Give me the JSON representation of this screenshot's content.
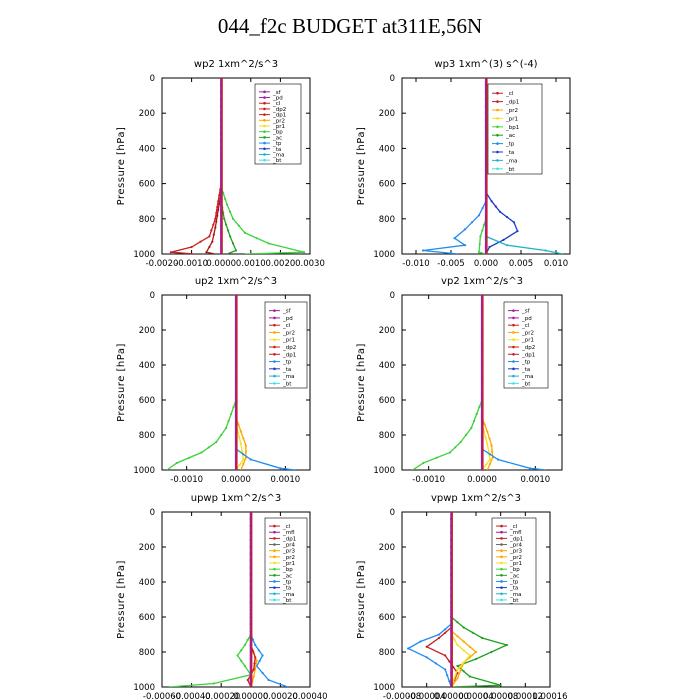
{
  "title": "044_f2c  BUDGET at311E,56N",
  "colors": {
    "sf": "#a01ea0",
    "pd": "#a01ea0",
    "cl": "#c81e1e",
    "dp": "#c81e1e",
    "dp2": "#c81e1e",
    "pr2": "#ffa500",
    "pr1": "#f0e020",
    "bp": "#3cd23c",
    "ac": "#20a020",
    "tp": "#1e8cf0",
    "ta": "#1e3cc8",
    "ma": "#20b4c8",
    "bt": "#40e0f0",
    "mfl": "#a01ea0",
    "dp4": "#c81e1e",
    "pr3": "#ffa500"
  },
  "chart_data": [
    {
      "type": "line",
      "title": "wp2  1xm^2/s^3",
      "ylabel": "Pressure  [hPa]",
      "xlim": [
        -0.002,
        0.003
      ],
      "ylim": [
        1000,
        0
      ],
      "xticks": [
        "-0.0020",
        "-0.0010",
        "0.0000",
        "0.0010",
        "0.0020",
        "0.0030"
      ],
      "yticks": [
        "0",
        "200",
        "400",
        "600",
        "800",
        "1000"
      ],
      "legend": [
        "_sf",
        "_pd",
        "_cl",
        "_dp2",
        "_dp1",
        "_pr2",
        "_pr1",
        "_bp",
        "_ac",
        "_tp",
        "_ta",
        "_ma",
        "_bt"
      ],
      "series": [
        {
          "name": "_cl",
          "color": "#c81e1e",
          "points": [
            [
              0,
              0
            ],
            [
              0,
              600
            ],
            [
              -0.0001,
              700
            ],
            [
              -0.0002,
              800
            ],
            [
              -0.0004,
              900
            ],
            [
              -0.001,
              960
            ],
            [
              -0.0017,
              990
            ],
            [
              -0.0009,
              1000
            ]
          ]
        },
        {
          "name": "_dp2",
          "color": "#b01414",
          "points": [
            [
              0,
              0
            ],
            [
              0,
              650
            ],
            [
              -0.0001,
              750
            ],
            [
              -0.0002,
              850
            ],
            [
              -0.0003,
              930
            ],
            [
              -0.0005,
              990
            ],
            [
              -0.0002,
              1000
            ]
          ]
        },
        {
          "name": "_bp",
          "color": "#3cd23c",
          "points": [
            [
              0,
              0
            ],
            [
              0,
              620
            ],
            [
              0.0002,
              720
            ],
            [
              0.0004,
              800
            ],
            [
              0.0008,
              880
            ],
            [
              0.0016,
              940
            ],
            [
              0.0028,
              990
            ],
            [
              0.0008,
              1000
            ]
          ]
        },
        {
          "name": "_ac",
          "color": "#20a020",
          "points": [
            [
              0,
              0
            ],
            [
              0,
              700
            ],
            [
              0.0001,
              800
            ],
            [
              0.0003,
              900
            ],
            [
              0.0005,
              980
            ],
            [
              0.0002,
              1000
            ]
          ]
        },
        {
          "name": "_pd",
          "color": "#a01ea0",
          "points": [
            [
              0,
              0
            ],
            [
              0,
              1000
            ]
          ]
        }
      ]
    },
    {
      "type": "line",
      "title": "wp3  1xm^(3) s^(-4)",
      "ylabel": "Pressure  [hPa]",
      "xlim": [
        -0.012,
        0.012
      ],
      "ylim": [
        1000,
        0
      ],
      "xticks": [
        "-0.010",
        "-0.005",
        "0.000",
        "0.005",
        "0.010"
      ],
      "yticks": [
        "0",
        "200",
        "400",
        "600",
        "800",
        "1000"
      ],
      "legend": [
        "_cl",
        "_dp1",
        "_pr2",
        "_pr1",
        "_bp1",
        "_ac",
        "_tp",
        "_ta",
        "_ma",
        "_bt"
      ],
      "series": [
        {
          "name": "_ta",
          "color": "#1e3cc8",
          "points": [
            [
              0,
              0
            ],
            [
              0,
              650
            ],
            [
              0.0008,
              700
            ],
            [
              0.002,
              760
            ],
            [
              0.004,
              820
            ],
            [
              0.0045,
              870
            ],
            [
              0.0025,
              920
            ],
            [
              0.0005,
              960
            ],
            [
              0,
              1000
            ]
          ]
        },
        {
          "name": "_tp",
          "color": "#1e8cf0",
          "points": [
            [
              0,
              0
            ],
            [
              0,
              700
            ],
            [
              -0.001,
              780
            ],
            [
              -0.003,
              860
            ],
            [
              -0.0045,
              910
            ],
            [
              -0.003,
              950
            ],
            [
              -0.009,
              980
            ],
            [
              -0.004,
              1000
            ]
          ]
        },
        {
          "name": "_ma",
          "color": "#20b4c8",
          "points": [
            [
              0,
              0
            ],
            [
              0,
              900
            ],
            [
              0.003,
              950
            ],
            [
              0.0085,
              980
            ],
            [
              0.011,
              1000
            ]
          ]
        },
        {
          "name": "_ac",
          "color": "#3cd23c",
          "points": [
            [
              0,
              0
            ],
            [
              0,
              800
            ],
            [
              -0.0008,
              900
            ],
            [
              -0.001,
              990
            ],
            [
              0,
              1000
            ]
          ]
        },
        {
          "name": "_cl",
          "color": "#c81e1e",
          "points": [
            [
              0,
              0
            ],
            [
              0,
              1000
            ]
          ]
        }
      ]
    },
    {
      "type": "line",
      "title": "up2  1xm^2/s^3",
      "ylabel": "Pressure  [hPa]",
      "xlim": [
        -0.0015,
        0.0015
      ],
      "ylim": [
        1000,
        0
      ],
      "xticks": [
        "-0.0010",
        "0.0000",
        "0.0010"
      ],
      "yticks": [
        "0",
        "200",
        "400",
        "600",
        "800",
        "1000"
      ],
      "legend": [
        "_sf",
        "_pd",
        "_cl",
        "_pr2",
        "_pr1",
        "_dp2",
        "_dp1",
        "_tp",
        "_ta",
        "_ma",
        "_bt"
      ],
      "series": [
        {
          "name": "_dp1",
          "color": "#3cd23c",
          "points": [
            [
              0,
              0
            ],
            [
              0,
              600
            ],
            [
              -0.0001,
              680
            ],
            [
              -0.0002,
              760
            ],
            [
              -0.0004,
              840
            ],
            [
              -0.0007,
              900
            ],
            [
              -0.0012,
              960
            ],
            [
              -0.0014,
              1000
            ]
          ]
        },
        {
          "name": "_pr2",
          "color": "#ffa500",
          "points": [
            [
              0,
              0
            ],
            [
              0,
              700
            ],
            [
              0.0001,
              780
            ],
            [
              0.0002,
              860
            ],
            [
              0.0002,
              930
            ],
            [
              0.0001,
              1000
            ]
          ]
        },
        {
          "name": "_pr1",
          "color": "#f0e020",
          "points": [
            [
              0,
              0
            ],
            [
              0,
              740
            ],
            [
              0.0001,
              850
            ],
            [
              0.00015,
              940
            ],
            [
              0,
              1000
            ]
          ]
        },
        {
          "name": "_tp",
          "color": "#1e8cf0",
          "points": [
            [
              0,
              0
            ],
            [
              0,
              880
            ],
            [
              0.0003,
              940
            ],
            [
              0.0009,
              990
            ],
            [
              0.0012,
              1000
            ]
          ]
        },
        {
          "name": "_cl",
          "color": "#c81e1e",
          "points": [
            [
              0,
              0
            ],
            [
              0,
              1000
            ]
          ]
        }
      ]
    },
    {
      "type": "line",
      "title": "vp2  1xm^2/s^3",
      "ylabel": "Pressure  [hPa]",
      "xlim": [
        -0.0015,
        0.0015
      ],
      "ylim": [
        1000,
        0
      ],
      "xticks": [
        "-0.0010",
        "0.0000",
        "0.0010"
      ],
      "yticks": [
        "0",
        "200",
        "400",
        "600",
        "800",
        "1000"
      ],
      "legend": [
        "_sf",
        "_pd",
        "_cl",
        "_pr2",
        "_pr1",
        "_dp2",
        "_dp1",
        "_tp",
        "_ta",
        "_ma",
        "_bt"
      ],
      "series": [
        {
          "name": "_dp1",
          "color": "#3cd23c",
          "points": [
            [
              0,
              0
            ],
            [
              0,
              600
            ],
            [
              -0.0001,
              680
            ],
            [
              -0.0002,
              760
            ],
            [
              -0.0004,
              840
            ],
            [
              -0.0006,
              900
            ],
            [
              -0.0011,
              960
            ],
            [
              -0.0013,
              1000
            ]
          ]
        },
        {
          "name": "_pr2",
          "color": "#ffa500",
          "points": [
            [
              0,
              0
            ],
            [
              0,
              700
            ],
            [
              0.0001,
              780
            ],
            [
              0.00018,
              860
            ],
            [
              0.0002,
              930
            ],
            [
              0.0001,
              1000
            ]
          ]
        },
        {
          "name": "_pr1",
          "color": "#f0e020",
          "points": [
            [
              0,
              0
            ],
            [
              0,
              740
            ],
            [
              0.0001,
              850
            ],
            [
              0.00015,
              940
            ],
            [
              0,
              1000
            ]
          ]
        },
        {
          "name": "_tp",
          "color": "#1e8cf0",
          "points": [
            [
              0,
              0
            ],
            [
              0,
              880
            ],
            [
              0.0003,
              940
            ],
            [
              0.0009,
              990
            ],
            [
              0.0012,
              1000
            ]
          ]
        },
        {
          "name": "_cl",
          "color": "#c81e1e",
          "points": [
            [
              0,
              0
            ],
            [
              0,
              1000
            ]
          ]
        }
      ]
    },
    {
      "type": "line",
      "title": "upwp  1xm^2/s^3",
      "ylabel": "Pressure  [hPa]",
      "xlim": [
        -0.0006,
        0.0004
      ],
      "ylim": [
        1000,
        0
      ],
      "xticks": [
        "-0.00060",
        "-0.00040",
        "-0.00020",
        "0.00000",
        "0.00020",
        "0.00040"
      ],
      "yticks": [
        "0",
        "200",
        "400",
        "600",
        "800",
        "1000"
      ],
      "legend": [
        "_cl",
        "_mfl",
        "_dp1",
        "_pr4",
        "_pr3",
        "_pr2",
        "_pr1",
        "_bp",
        "_ac",
        "_tp",
        "_ta",
        "_ma",
        "_bt"
      ],
      "series": [
        {
          "name": "_bp",
          "color": "#3cd23c",
          "points": [
            [
              0,
              0
            ],
            [
              0,
              700
            ],
            [
              -4e-05,
              760
            ],
            [
              -9e-05,
              820
            ],
            [
              -4e-05,
              880
            ],
            [
              0,
              930
            ],
            [
              -0.00025,
              980
            ],
            [
              -0.00055,
              1000
            ]
          ]
        },
        {
          "name": "_tp",
          "color": "#1e8cf0",
          "points": [
            [
              0,
              0
            ],
            [
              0,
              700
            ],
            [
              3e-05,
              760
            ],
            [
              8e-05,
              820
            ],
            [
              4e-05,
              880
            ],
            [
              0.00012,
              960
            ],
            [
              0.00025,
              1000
            ]
          ]
        },
        {
          "name": "_pr2",
          "color": "#ffa500",
          "points": [
            [
              0,
              0
            ],
            [
              0,
              760
            ],
            [
              4e-05,
              850
            ],
            [
              2e-05,
              940
            ],
            [
              0,
              1000
            ]
          ]
        },
        {
          "name": "_dp1",
          "color": "#c81e1e",
          "points": [
            [
              0,
              0
            ],
            [
              0,
              760
            ],
            [
              3e-05,
              830
            ],
            [
              2e-05,
              900
            ],
            [
              -2e-05,
              960
            ],
            [
              0,
              1000
            ]
          ]
        },
        {
          "name": "_cl",
          "color": "#a01ea0",
          "points": [
            [
              0,
              0
            ],
            [
              0,
              1000
            ]
          ]
        }
      ]
    },
    {
      "type": "line",
      "title": "vpwp  1xm^2/s^3",
      "ylabel": "Pressure  [hPa]",
      "xlim": [
        -8e-05,
        0.00016
      ],
      "ylim": [
        1000,
        0
      ],
      "xticks": [
        "-0.00008",
        "-0.00004",
        "0.00000",
        "0.00004",
        "0.00008",
        "0.00012",
        "0.00016"
      ],
      "yticks": [
        "0",
        "200",
        "400",
        "600",
        "800",
        "1000"
      ],
      "legend": [
        "_cl",
        "_mfl",
        "_dp1",
        "_pr4",
        "_pr3",
        "_pr2",
        "_pr1",
        "_bp",
        "_ac",
        "_tp",
        "_ta",
        "_ma",
        "_bt"
      ],
      "series": [
        {
          "name": "_bp",
          "color": "#20a020",
          "points": [
            [
              0,
              0
            ],
            [
              0,
              600
            ],
            [
              2e-05,
              660
            ],
            [
              5e-05,
              720
            ],
            [
              9e-05,
              760
            ],
            [
              4e-05,
              840
            ],
            [
              1e-05,
              880
            ],
            [
              3e-05,
              940
            ],
            [
              8e-05,
              990
            ],
            [
              0,
              1000
            ]
          ]
        },
        {
          "name": "_tp",
          "color": "#1e8cf0",
          "points": [
            [
              0,
              0
            ],
            [
              0,
              640
            ],
            [
              -2e-05,
              700
            ],
            [
              -5e-05,
              740
            ],
            [
              -7e-05,
              780
            ],
            [
              -4e-05,
              830
            ],
            [
              -1e-05,
              900
            ],
            [
              0,
              1000
            ]
          ]
        },
        {
          "name": "_dp1",
          "color": "#c81e1e",
          "points": [
            [
              0,
              0
            ],
            [
              0,
              660
            ],
            [
              -2e-05,
              720
            ],
            [
              -4e-05,
              770
            ],
            [
              -1e-05,
              820
            ],
            [
              1e-05,
              920
            ],
            [
              0,
              1000
            ]
          ]
        },
        {
          "name": "_pr2",
          "color": "#ffa500",
          "points": [
            [
              0,
              0
            ],
            [
              0,
              680
            ],
            [
              2e-05,
              740
            ],
            [
              4e-05,
              800
            ],
            [
              2e-05,
              860
            ],
            [
              1e-05,
              950
            ],
            [
              0,
              1000
            ]
          ]
        },
        {
          "name": "_pr1",
          "color": "#f0e020",
          "points": [
            [
              0,
              0
            ],
            [
              0,
              700
            ],
            [
              1e-05,
              760
            ],
            [
              3e-05,
              820
            ],
            [
              1e-05,
              900
            ],
            [
              0,
              1000
            ]
          ]
        },
        {
          "name": "_cl",
          "color": "#a01ea0",
          "points": [
            [
              0,
              0
            ],
            [
              0,
              1000
            ]
          ]
        }
      ]
    }
  ]
}
